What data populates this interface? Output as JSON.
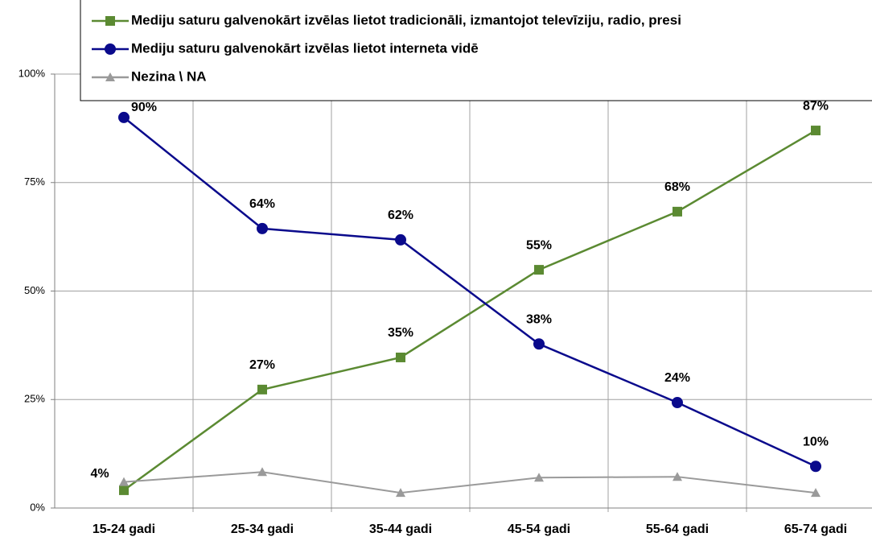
{
  "chart_data": {
    "type": "line",
    "categories": [
      "15-24 gadi",
      "25-34 gadi",
      "35-44 gadi",
      "45-54 gadi",
      "55-64 gadi",
      "65-74 gadi"
    ],
    "series": [
      {
        "name": "Mediju saturu galvenokārt izvēlas lietot tradicionāli, izmantojot televīziju, radio, presi",
        "color": "#5b8a32",
        "marker": "square",
        "values": [
          4.1,
          27.3,
          34.7,
          54.9,
          68.3,
          87
        ],
        "value_labels": [
          "4%",
          "27%",
          "35%",
          "55%",
          "68%",
          "87%"
        ]
      },
      {
        "name": "Mediju saturu galvenokārt izvēlas lietot interneta vidē",
        "color": "#0a0a8c",
        "marker": "circle",
        "values": [
          90,
          64.4,
          61.8,
          37.8,
          24.3,
          9.6
        ],
        "value_labels": [
          "90%",
          "64%",
          "62%",
          "38%",
          "24%",
          "10%"
        ]
      },
      {
        "name": "Nezina \\ NA",
        "color": "#9a9a9a",
        "marker": "triangle",
        "values": [
          6,
          8.3,
          3.5,
          7,
          7.2,
          3.5
        ]
      }
    ],
    "ylim": [
      0,
      100
    ],
    "yticks": [
      {
        "value": 0,
        "label": "0%"
      },
      {
        "value": 25,
        "label": "25%"
      },
      {
        "value": 50,
        "label": "50%"
      },
      {
        "value": 75,
        "label": "75%"
      },
      {
        "value": 100,
        "label": "100%"
      }
    ],
    "grid": true
  }
}
